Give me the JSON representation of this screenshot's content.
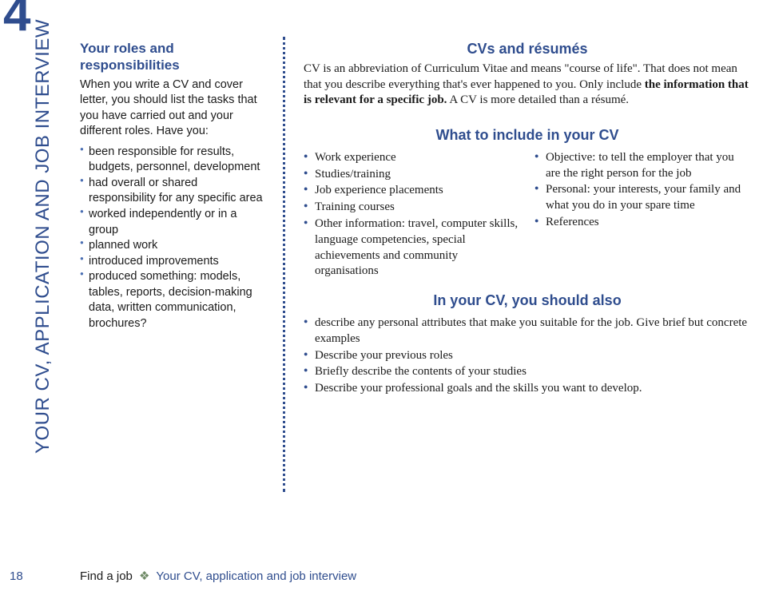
{
  "chapter_number": "4",
  "vertical_label": "YOUR CV, APPLICATION AND JOB INTERVIEW",
  "page_number": "18",
  "footer": {
    "main": "Find a job",
    "separator": "❖",
    "sub": "Your CV, application and job interview"
  },
  "colors": {
    "brand": "#2f4d8e",
    "bullet_light": "#4b6fb3",
    "text": "#1a1a1a"
  },
  "sidebar": {
    "heading": "Your roles and responsibilities",
    "intro": "When you write a CV and cover letter, you should list the tasks that you have carried out and your different roles. Have you:",
    "items": [
      "been responsible for results, budgets, personnel, development",
      "had overall or shared responsibility for any specific area",
      "worked independently or in a group",
      "planned work",
      "introduced improvements",
      "produced something: models, tables, reports, decision-making data, written communication, brochures?"
    ]
  },
  "section1": {
    "title": "CVs and résumés",
    "body_pre": "CV is an abbreviation of Curriculum Vitae and means \"course of life\". That does not mean that you describe everything that's ever happened to you. Only include ",
    "body_bold": "the information that is relevant for a specific job.",
    "body_post": " A CV is more detailed than a résumé."
  },
  "section2": {
    "title": "What to include in your CV",
    "left": [
      "Work experience",
      "Studies/training",
      "Job experience placements",
      "Training courses",
      "Other information: travel, computer skills, language competencies, special achievements and community organisations"
    ],
    "right": [
      "Objective: to tell the employer that you are the right person for the job",
      "Personal: your interests, your family and what you do in your spare time",
      "References"
    ]
  },
  "section3": {
    "title": "In your CV, you should also",
    "items": [
      "describe any personal attributes that make you suitable for the job. Give brief but concrete examples",
      "Describe your previous roles",
      "Briefly describe the contents of your studies",
      "Describe your professional goals and the skills you want to develop."
    ]
  }
}
